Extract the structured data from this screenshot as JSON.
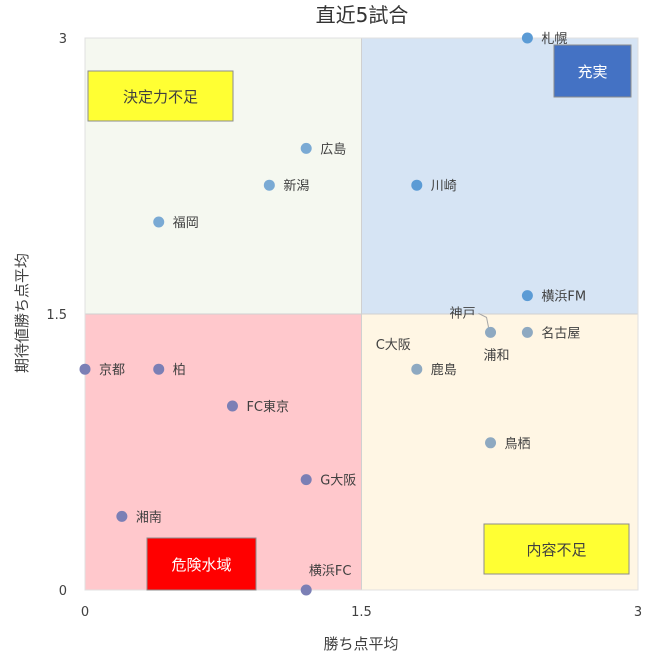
{
  "chart_data": {
    "type": "scatter",
    "title": "直近5試合",
    "xlabel": "勝ち点平均",
    "ylabel": "期待値勝ち点平均",
    "xlim": [
      0,
      3
    ],
    "ylim": [
      0,
      3
    ],
    "x_ticks": [
      "0",
      "1.5",
      "3"
    ],
    "y_ticks": [
      "0",
      "1.5",
      "3"
    ],
    "grid": false,
    "quadrants": [
      {
        "name": "top-left",
        "x": [
          0,
          1.5
        ],
        "y": [
          1.5,
          3
        ],
        "fill": "#f5f8f0"
      },
      {
        "name": "top-right",
        "x": [
          1.5,
          3
        ],
        "y": [
          1.5,
          3
        ],
        "fill": "#d6e4f4"
      },
      {
        "name": "bottom-left",
        "x": [
          0,
          1.5
        ],
        "y": [
          0,
          1.5
        ],
        "fill": "#ffc8cc"
      },
      {
        "name": "bottom-right",
        "x": [
          1.5,
          3
        ],
        "y": [
          0,
          1.5
        ],
        "fill": "#fff6e4"
      }
    ],
    "annotations": [
      {
        "text": "決定力不足",
        "bg": "#ffff33",
        "color": "#404040",
        "anchor": "top-left"
      },
      {
        "text": "充実",
        "bg": "#4472c4",
        "color": "#ffffff",
        "anchor": "top-right"
      },
      {
        "text": "危険水域",
        "bg": "#ff0000",
        "color": "#ffffff",
        "anchor": "bottom-left"
      },
      {
        "text": "内容不足",
        "bg": "#ffff33",
        "color": "#404040",
        "anchor": "bottom-right"
      }
    ],
    "points": [
      {
        "label": "札幌",
        "x": 2.4,
        "y": 3.0,
        "color": "#5b9bd5"
      },
      {
        "label": "広島",
        "x": 1.2,
        "y": 2.4,
        "color": "#7aaad4"
      },
      {
        "label": "新潟",
        "x": 1.0,
        "y": 2.2,
        "color": "#7aaad4"
      },
      {
        "label": "川崎",
        "x": 1.8,
        "y": 2.2,
        "color": "#5b9bd5"
      },
      {
        "label": "福岡",
        "x": 0.4,
        "y": 2.0,
        "color": "#7aaad4"
      },
      {
        "label": "横浜FM",
        "x": 2.4,
        "y": 1.6,
        "color": "#5b9bd5"
      },
      {
        "label": "神戸",
        "x": 2.2,
        "y": 1.4,
        "color": "#8ea9c1"
      },
      {
        "label": "名古屋",
        "x": 2.4,
        "y": 1.4,
        "color": "#8ea9c1"
      },
      {
        "label": "浦和",
        "x": 2.2,
        "y": 1.4,
        "color": "#8ea9c1"
      },
      {
        "label": "C大阪",
        "x": 1.8,
        "y": 1.2,
        "color": "#8ea9c1"
      },
      {
        "label": "鹿島",
        "x": 1.8,
        "y": 1.2,
        "color": "#8ea9c1"
      },
      {
        "label": "京都",
        "x": 0.0,
        "y": 1.2,
        "color": "#7b7fb5"
      },
      {
        "label": "柏",
        "x": 0.4,
        "y": 1.2,
        "color": "#7b7fb5"
      },
      {
        "label": "FC東京",
        "x": 0.8,
        "y": 1.0,
        "color": "#7b7fb5"
      },
      {
        "label": "鳥栖",
        "x": 2.2,
        "y": 0.8,
        "color": "#8ea9c1"
      },
      {
        "label": "G大阪",
        "x": 1.2,
        "y": 0.6,
        "color": "#7b7fb5"
      },
      {
        "label": "湘南",
        "x": 0.2,
        "y": 0.4,
        "color": "#7b7fb5"
      },
      {
        "label": "横浜FC",
        "x": 1.2,
        "y": 0.0,
        "color": "#7b7fb5"
      }
    ]
  }
}
